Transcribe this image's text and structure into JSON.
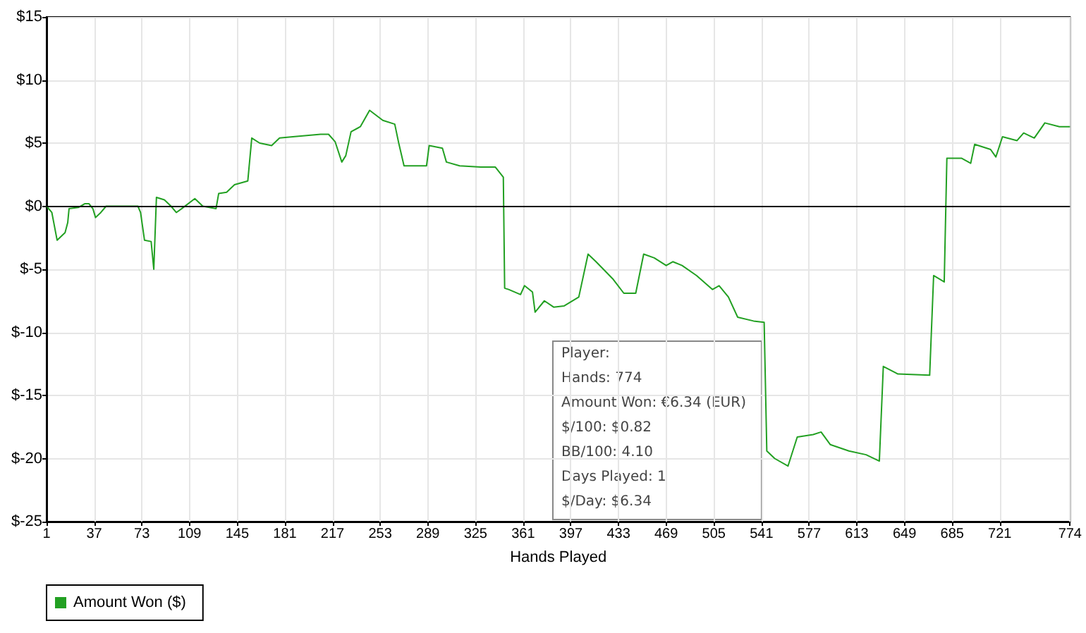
{
  "chart_data": {
    "type": "line",
    "xlabel": "Hands Played",
    "x": [
      1,
      5,
      9,
      15,
      17,
      18,
      25,
      30,
      33,
      36,
      38,
      42,
      46,
      56,
      61,
      70,
      72,
      75,
      80,
      82,
      84,
      90,
      95,
      99,
      103,
      113,
      119,
      124,
      129,
      131,
      137,
      143,
      153,
      156,
      162,
      171,
      177,
      187,
      208,
      214,
      219,
      224,
      227,
      231,
      238,
      245,
      255,
      264,
      267,
      271,
      282,
      288,
      290,
      300,
      303,
      313,
      329,
      340,
      346,
      347,
      350,
      359,
      362,
      368,
      370,
      377,
      384,
      392,
      403,
      410,
      416,
      429,
      437,
      446,
      452,
      460,
      469,
      474,
      481,
      492,
      504,
      509,
      516,
      523,
      535,
      543,
      545,
      551,
      561,
      568,
      580,
      586,
      593,
      607,
      620,
      630,
      633,
      644,
      668,
      671,
      679,
      681,
      692,
      699,
      702,
      714,
      718,
      723,
      734,
      739,
      747,
      755,
      766,
      774
    ],
    "series": [
      {
        "name": "Amount Won ($)",
        "color": "#22a022",
        "values": [
          0,
          -0.5,
          -2.7,
          -2.1,
          -1.3,
          -0.2,
          -0.1,
          0.2,
          0.2,
          -0.2,
          -0.9,
          -0.5,
          0,
          0,
          0,
          0,
          -0.5,
          -2.7,
          -2.8,
          -5,
          0.7,
          0.5,
          0,
          -0.5,
          -0.2,
          0.6,
          0,
          -0.1,
          -0.2,
          1,
          1.1,
          1.7,
          2,
          5.4,
          5,
          4.8,
          5.4,
          5.5,
          5.7,
          5.7,
          5.1,
          3.5,
          4,
          5.9,
          6.3,
          7.6,
          6.8,
          6.5,
          5,
          3.2,
          3.2,
          3.2,
          4.8,
          4.6,
          3.5,
          3.2,
          3.1,
          3.1,
          2.3,
          -6.5,
          -6.6,
          -7,
          -6.3,
          -6.8,
          -8.4,
          -7.5,
          -8,
          -7.9,
          -7.2,
          -3.8,
          -4.4,
          -5.8,
          -6.9,
          -6.9,
          -3.8,
          -4.1,
          -4.7,
          -4.4,
          -4.7,
          -5.5,
          -6.6,
          -6.3,
          -7.2,
          -8.8,
          -9.1,
          -9.2,
          -19.4,
          -20,
          -20.6,
          -18.3,
          -18.1,
          -17.9,
          -18.9,
          -19.4,
          -19.7,
          -20.2,
          -12.7,
          -13.3,
          -13.4,
          -5.5,
          -6,
          3.8,
          3.8,
          3.4,
          4.9,
          4.5,
          3.9,
          5.5,
          5.2,
          5.8,
          5.4,
          6.6,
          6.3,
          6.3
        ]
      }
    ],
    "xlim": [
      1,
      774
    ],
    "xticks": [
      1,
      37,
      73,
      109,
      145,
      181,
      217,
      253,
      289,
      325,
      361,
      397,
      433,
      469,
      505,
      541,
      577,
      613,
      649,
      685,
      721,
      774
    ],
    "ylim": [
      -25,
      15
    ],
    "yticks": [
      {
        "value": -25,
        "label": "$-25"
      },
      {
        "value": -20,
        "label": "$-20"
      },
      {
        "value": -15,
        "label": "$-15"
      },
      {
        "value": -10,
        "label": "$-10"
      },
      {
        "value": -5,
        "label": "$-5"
      },
      {
        "value": 0,
        "label": "$0"
      },
      {
        "value": 5,
        "label": "$5"
      },
      {
        "value": 10,
        "label": "$10"
      },
      {
        "value": 15,
        "label": "$15"
      }
    ],
    "ref_lines": [
      {
        "axis": "y",
        "value": 0,
        "color": "#000000"
      }
    ],
    "grid": true,
    "legend": "bottom left",
    "annotations": [
      "Player:",
      "Hands: 774",
      "Amount Won: €6.34 (EUR)",
      "$/100: $0.82",
      "BB/100: 4.10",
      "Days Played: 1",
      "$/Day: $6.34"
    ]
  }
}
